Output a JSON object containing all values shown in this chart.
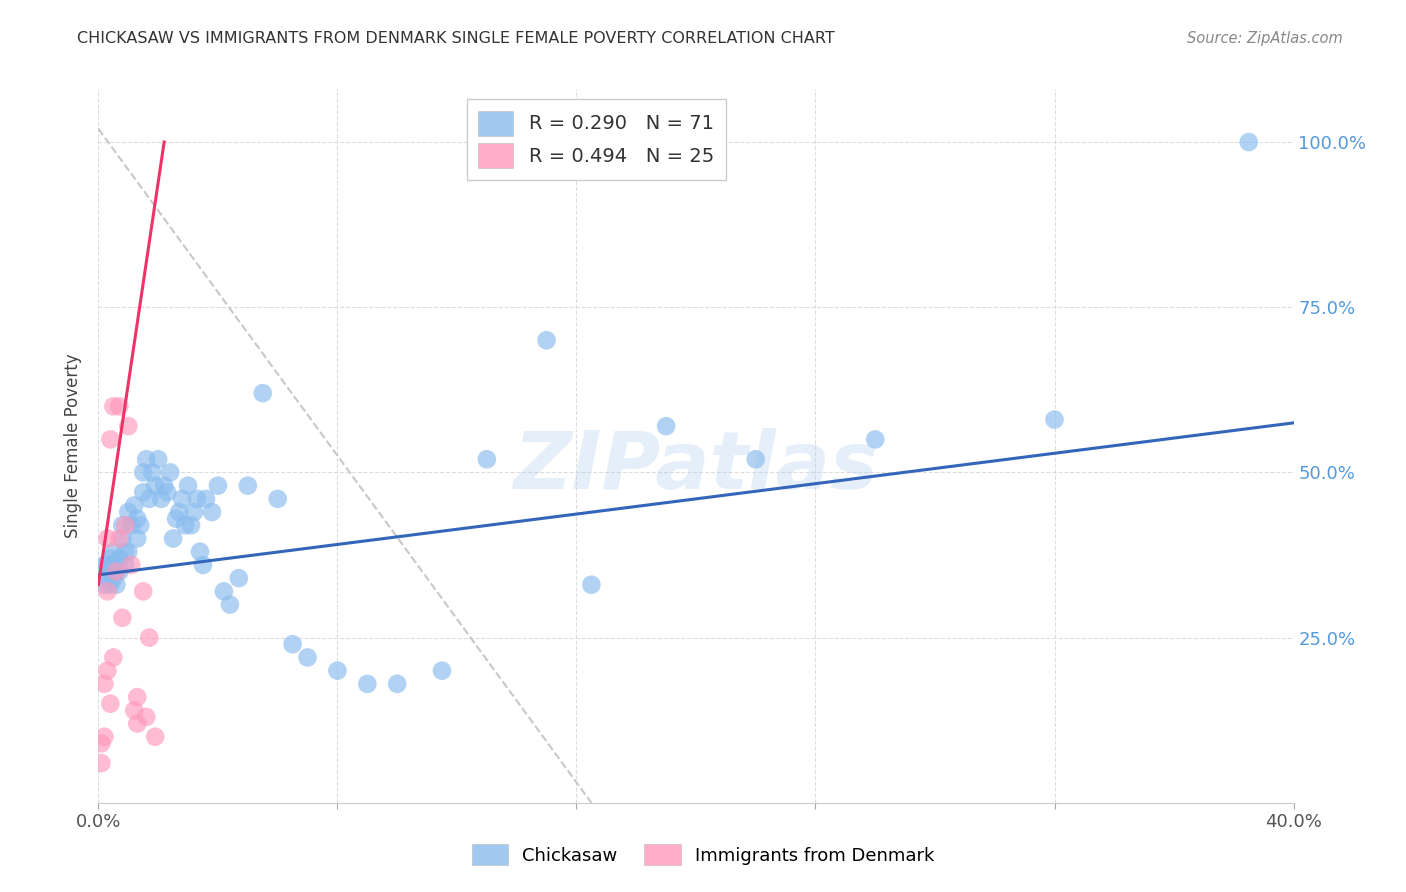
{
  "title": "CHICKASAW VS IMMIGRANTS FROM DENMARK SINGLE FEMALE POVERTY CORRELATION CHART",
  "source": "Source: ZipAtlas.com",
  "ylabel": "Single Female Poverty",
  "ytick_values": [
    0.0,
    0.25,
    0.5,
    0.75,
    1.0
  ],
  "ytick_labels": [
    "",
    "25.0%",
    "50.0%",
    "75.0%",
    "100.0%"
  ],
  "xtick_values": [
    0.0,
    0.08,
    0.16,
    0.24,
    0.32,
    0.4
  ],
  "xtick_labels": [
    "0.0%",
    "",
    "",
    "",
    "",
    "40.0%"
  ],
  "xlim": [
    0.0,
    0.4
  ],
  "ylim": [
    0.0,
    1.08
  ],
  "legend_r1": "R = 0.290",
  "legend_n1": "N = 71",
  "legend_r2": "R = 0.494",
  "legend_n2": "N = 25",
  "color_blue": "#88BBEE",
  "color_pink": "#FF99BB",
  "color_line_blue": "#3366BB",
  "color_line_pink": "#EE3366",
  "color_line_ref": "#C8C8C8",
  "watermark": "ZIPatlas",
  "blue_line_x": [
    0.0,
    0.4
  ],
  "blue_line_y": [
    0.345,
    0.575
  ],
  "pink_line_x": [
    0.0,
    0.022
  ],
  "pink_line_y": [
    0.33,
    1.0
  ],
  "ref_line_x": [
    0.0,
    0.165
  ],
  "ref_line_y": [
    1.02,
    0.0
  ],
  "chickasaw_x": [
    0.002,
    0.002,
    0.003,
    0.003,
    0.004,
    0.004,
    0.004,
    0.005,
    0.005,
    0.005,
    0.006,
    0.006,
    0.006,
    0.007,
    0.007,
    0.008,
    0.008,
    0.009,
    0.009,
    0.01,
    0.01,
    0.011,
    0.012,
    0.013,
    0.013,
    0.014,
    0.015,
    0.015,
    0.016,
    0.017,
    0.018,
    0.019,
    0.02,
    0.021,
    0.022,
    0.023,
    0.024,
    0.025,
    0.026,
    0.027,
    0.028,
    0.029,
    0.03,
    0.031,
    0.032,
    0.033,
    0.034,
    0.035,
    0.036,
    0.038,
    0.04,
    0.042,
    0.044,
    0.047,
    0.05,
    0.055,
    0.06,
    0.065,
    0.07,
    0.08,
    0.09,
    0.1,
    0.115,
    0.13,
    0.15,
    0.165,
    0.19,
    0.22,
    0.26,
    0.32,
    0.385
  ],
  "chickasaw_y": [
    0.36,
    0.33,
    0.36,
    0.34,
    0.35,
    0.33,
    0.37,
    0.36,
    0.34,
    0.38,
    0.35,
    0.36,
    0.33,
    0.37,
    0.35,
    0.42,
    0.4,
    0.38,
    0.36,
    0.44,
    0.38,
    0.42,
    0.45,
    0.43,
    0.4,
    0.42,
    0.5,
    0.47,
    0.52,
    0.46,
    0.5,
    0.48,
    0.52,
    0.46,
    0.48,
    0.47,
    0.5,
    0.4,
    0.43,
    0.44,
    0.46,
    0.42,
    0.48,
    0.42,
    0.44,
    0.46,
    0.38,
    0.36,
    0.46,
    0.44,
    0.48,
    0.32,
    0.3,
    0.34,
    0.48,
    0.62,
    0.46,
    0.24,
    0.22,
    0.2,
    0.18,
    0.18,
    0.2,
    0.52,
    0.7,
    0.33,
    0.57,
    0.52,
    0.55,
    0.58,
    1.0
  ],
  "denmark_x": [
    0.001,
    0.001,
    0.002,
    0.002,
    0.003,
    0.003,
    0.003,
    0.004,
    0.004,
    0.005,
    0.005,
    0.006,
    0.007,
    0.007,
    0.008,
    0.009,
    0.01,
    0.011,
    0.012,
    0.013,
    0.013,
    0.015,
    0.016,
    0.017,
    0.019
  ],
  "denmark_y": [
    0.06,
    0.09,
    0.1,
    0.18,
    0.2,
    0.32,
    0.4,
    0.15,
    0.55,
    0.22,
    0.6,
    0.35,
    0.4,
    0.6,
    0.28,
    0.42,
    0.57,
    0.36,
    0.14,
    0.12,
    0.16,
    0.32,
    0.13,
    0.25,
    0.1
  ]
}
